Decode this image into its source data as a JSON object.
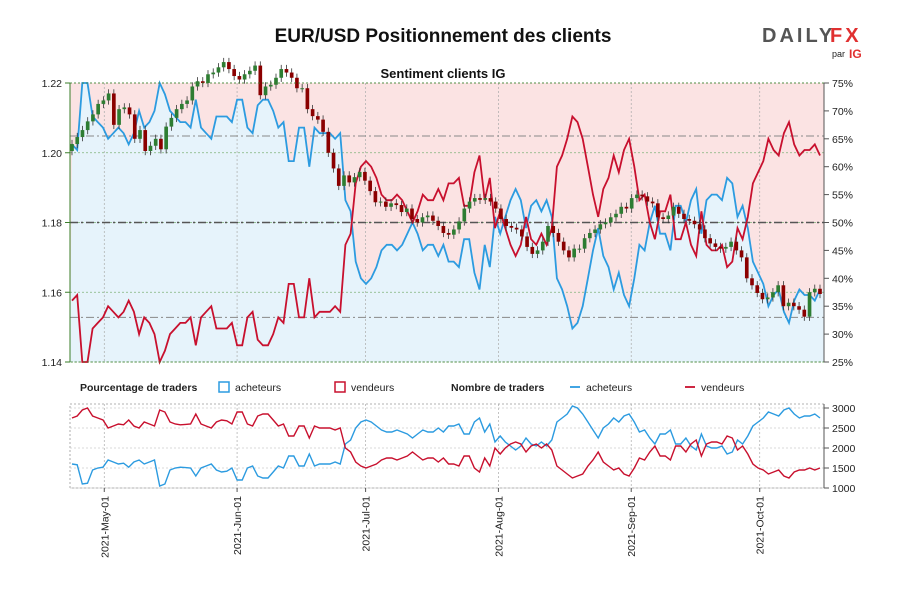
{
  "header": {
    "title": "EUR/USD Positionnement des clients",
    "subtitle": "Sentiment clients IG"
  },
  "brand": {
    "name_part1": "DAILY",
    "name_part2": "FX",
    "tagline": "par",
    "tagline_brand": "IG",
    "color_dark": "#555555",
    "color_red": "#e03030"
  },
  "legend": {
    "pct_title": "Pourcentage de traders",
    "pct_long": "acheteurs",
    "pct_short": "vendeurs",
    "num_title": "Nombre de traders",
    "num_long": "acheteurs",
    "num_short": "vendeurs"
  },
  "colors": {
    "long": "#2c9be0",
    "short": "#c8102e",
    "long_fill": "#e6f3fb",
    "short_fill": "#fbe3e3",
    "candle_up": "#2e7d32",
    "candle_down": "#8b0000",
    "price_axis": "#3a7d2a"
  },
  "chart_data": [
    {
      "type": "candlestick",
      "name": "price",
      "y_ticks": [
        "1.14",
        "1.16",
        "1.18",
        "1.20",
        "1.22"
      ],
      "ylim": [
        1.14,
        1.22
      ],
      "x_ticks": [
        "2021-May-01",
        "2021-Jun-01",
        "2021-Jul-01",
        "2021-Aug-01",
        "2021-Sep-01",
        "2021-Oct-01"
      ],
      "x_start": "2021-04-23",
      "x_end": "2021-10-16",
      "close": [
        1.2025,
        1.2045,
        1.2065,
        1.209,
        1.211,
        1.214,
        1.215,
        1.217,
        1.208,
        1.2125,
        1.213,
        1.211,
        1.204,
        1.2065,
        1.2005,
        1.202,
        1.204,
        1.201,
        1.2075,
        1.21,
        1.2125,
        1.214,
        1.215,
        1.219,
        1.2205,
        1.22,
        1.2225,
        1.223,
        1.2245,
        1.226,
        1.224,
        1.222,
        1.221,
        1.2225,
        1.2235,
        1.225,
        1.2165,
        1.219,
        1.2195,
        1.2215,
        1.224,
        1.223,
        1.2215,
        1.2185,
        1.2185,
        1.2125,
        1.2105,
        1.2095,
        1.206,
        1.2,
        1.1955,
        1.1905,
        1.1935,
        1.1915,
        1.193,
        1.1945,
        1.192,
        1.189,
        1.1858,
        1.186,
        1.1845,
        1.1855,
        1.185,
        1.183,
        1.184,
        1.181,
        1.18,
        1.1815,
        1.182,
        1.1805,
        1.179,
        1.177,
        1.1765,
        1.178,
        1.1803,
        1.184,
        1.186,
        1.187,
        1.1865,
        1.187,
        1.186,
        1.184,
        1.181,
        1.179,
        1.1785,
        1.178,
        1.176,
        1.173,
        1.171,
        1.172,
        1.1745,
        1.179,
        1.177,
        1.1745,
        1.172,
        1.17,
        1.1725,
        1.1725,
        1.1755,
        1.177,
        1.178,
        1.1795,
        1.18,
        1.1815,
        1.1825,
        1.1845,
        1.184,
        1.187,
        1.188,
        1.1875,
        1.186,
        1.1855,
        1.1815,
        1.181,
        1.182,
        1.1845,
        1.1825,
        1.181,
        1.1805,
        1.1795,
        1.178,
        1.1755,
        1.174,
        1.173,
        1.1725,
        1.173,
        1.1745,
        1.172,
        1.17,
        1.164,
        1.162,
        1.1598,
        1.158,
        1.1585,
        1.16,
        1.162,
        1.156,
        1.157,
        1.156,
        1.155,
        1.153,
        1.16,
        1.161,
        1.1595
      ]
    },
    {
      "type": "line",
      "name": "percentage",
      "y_ticks": [
        "25%",
        "30%",
        "35%",
        "40%",
        "45%",
        "50%",
        "55%",
        "60%",
        "65%",
        "70%",
        "75%"
      ],
      "ylim": [
        25,
        75
      ],
      "reference_lines": [
        65.5,
        50,
        33
      ],
      "series": [
        {
          "name": "acheteurs",
          "values": [
            64,
            63,
            75,
            75,
            69,
            68,
            67,
            65,
            66,
            67,
            66,
            64,
            66,
            70,
            67,
            68,
            70,
            75,
            73,
            70,
            69,
            68,
            68,
            67,
            72,
            67,
            66,
            65,
            69,
            69,
            69,
            68,
            72,
            72,
            67,
            66,
            71,
            72,
            72,
            70,
            67,
            68,
            61,
            61,
            67,
            67,
            60,
            67,
            66,
            66,
            66,
            65,
            66,
            54,
            52,
            43,
            40,
            39,
            40,
            42,
            45,
            46,
            46,
            45,
            46,
            48,
            50,
            48,
            45,
            46,
            46,
            44,
            46,
            43,
            43,
            42,
            47,
            47,
            41,
            38,
            46,
            42,
            51,
            48,
            51,
            54,
            56,
            54,
            49,
            53,
            54,
            52,
            54,
            51,
            40,
            38,
            35,
            31,
            32,
            35,
            40,
            45,
            49,
            44,
            42,
            38,
            41,
            37,
            35,
            40,
            46,
            45,
            50,
            53,
            48,
            48,
            45,
            53,
            53,
            50,
            54,
            56,
            48,
            54,
            55,
            55,
            54,
            58,
            57,
            51,
            53,
            49,
            43,
            41,
            39,
            35,
            37,
            38,
            34,
            32,
            36,
            38,
            37,
            37,
            36,
            38
          ]
        },
        {
          "name": "vendeurs",
          "values": [
            36,
            37,
            25,
            25,
            31,
            32,
            33,
            35,
            34,
            33,
            34,
            36,
            34,
            30,
            33,
            32,
            30,
            25,
            27,
            30,
            31,
            32,
            32,
            33,
            28,
            33,
            34,
            35,
            31,
            31,
            31,
            32,
            28,
            28,
            33,
            34,
            29,
            28,
            28,
            30,
            33,
            32,
            39,
            39,
            33,
            33,
            40,
            33,
            34,
            34,
            34,
            35,
            34,
            46,
            48,
            57,
            60,
            61,
            60,
            58,
            55,
            54,
            54,
            55,
            54,
            52,
            50,
            52,
            55,
            54,
            54,
            56,
            54,
            57,
            57,
            58,
            53,
            53,
            59,
            62,
            54,
            58,
            49,
            52,
            49,
            46,
            44,
            46,
            51,
            47,
            46,
            48,
            46,
            49,
            60,
            62,
            65,
            69,
            68,
            65,
            60,
            55,
            51,
            56,
            58,
            62,
            59,
            63,
            65,
            60,
            54,
            55,
            50,
            47,
            52,
            52,
            55,
            47,
            47,
            50,
            46,
            44,
            52,
            46,
            45,
            45,
            46,
            42,
            43,
            49,
            47,
            51,
            57,
            59,
            61,
            65,
            63,
            62,
            66,
            68,
            64,
            62,
            63,
            63,
            64,
            62
          ]
        }
      ]
    },
    {
      "type": "line",
      "name": "number",
      "y_ticks": [
        "1000",
        "1500",
        "2000",
        "2500",
        "3000"
      ],
      "ylim": [
        1000,
        3100
      ],
      "series": [
        {
          "name": "acheteurs",
          "values": [
            1600,
            1580,
            1100,
            1120,
            1450,
            1500,
            1520,
            1700,
            1650,
            1600,
            1620,
            1520,
            1650,
            1700,
            1600,
            1650,
            1700,
            1050,
            1100,
            1450,
            1500,
            1520,
            1510,
            1500,
            1300,
            1500,
            1550,
            1600,
            1450,
            1400,
            1420,
            1500,
            1200,
            1200,
            1500,
            1550,
            1300,
            1250,
            1250,
            1400,
            1550,
            1500,
            1800,
            1800,
            1550,
            1550,
            1850,
            1550,
            1600,
            1600,
            1600,
            1650,
            1600,
            2100,
            2200,
            2500,
            2650,
            2700,
            2650,
            2550,
            2450,
            2400,
            2400,
            2450,
            2400,
            2350,
            2250,
            2350,
            2450,
            2400,
            2400,
            2500,
            2400,
            2550,
            2550,
            2600,
            2350,
            2350,
            2650,
            2750,
            2400,
            2600,
            2150,
            2300,
            2150,
            2050,
            1950,
            2050,
            2250,
            2100,
            2050,
            2150,
            2050,
            2200,
            2650,
            2750,
            2850,
            3050,
            3000,
            2850,
            2650,
            2450,
            2250,
            2500,
            2600,
            2750,
            2650,
            2800,
            2850,
            2650,
            2400,
            2450,
            2250,
            2100,
            2350,
            2350,
            2450,
            2100,
            2100,
            2250,
            2050,
            1950,
            2350,
            2050,
            2000,
            2000,
            2050,
            1850,
            1900,
            2200,
            2100,
            2300,
            2550,
            2650,
            2750,
            2900,
            2850,
            2800,
            2950,
            3000,
            2850,
            2750,
            2800,
            2800,
            2850,
            2750
          ]
        },
        {
          "name": "vendeurs",
          "values": [
            2750,
            2800,
            2950,
            3000,
            2800,
            2750,
            2700,
            2500,
            2550,
            2600,
            2580,
            2700,
            2550,
            2500,
            2650,
            2600,
            2550,
            2950,
            2900,
            2650,
            2600,
            2580,
            2590,
            2600,
            2850,
            2600,
            2550,
            2500,
            2650,
            2700,
            2680,
            2600,
            2900,
            2900,
            2600,
            2550,
            2800,
            2850,
            2850,
            2700,
            2550,
            2600,
            2300,
            2300,
            2550,
            2550,
            2250,
            2550,
            2500,
            2500,
            2500,
            2450,
            2500,
            2000,
            1900,
            1650,
            1550,
            1500,
            1550,
            1600,
            1700,
            1750,
            1750,
            1700,
            1750,
            1800,
            1900,
            1800,
            1700,
            1750,
            1750,
            1650,
            1750,
            1600,
            1600,
            1550,
            1800,
            1800,
            1500,
            1400,
            1750,
            1550,
            2000,
            1850,
            2000,
            2100,
            2150,
            2100,
            1900,
            2050,
            2100,
            2000,
            2100,
            1950,
            1550,
            1450,
            1350,
            1250,
            1300,
            1350,
            1550,
            1700,
            1900,
            1650,
            1550,
            1450,
            1500,
            1350,
            1300,
            1500,
            1750,
            1700,
            1900,
            2050,
            1800,
            1800,
            1700,
            2050,
            2050,
            1900,
            2100,
            2200,
            1800,
            2100,
            2150,
            2150,
            2100,
            2300,
            2250,
            1950,
            2050,
            1850,
            1600,
            1500,
            1450,
            1350,
            1400,
            1450,
            1300,
            1250,
            1400,
            1450,
            1450,
            1500,
            1450,
            1500
          ]
        }
      ]
    }
  ]
}
